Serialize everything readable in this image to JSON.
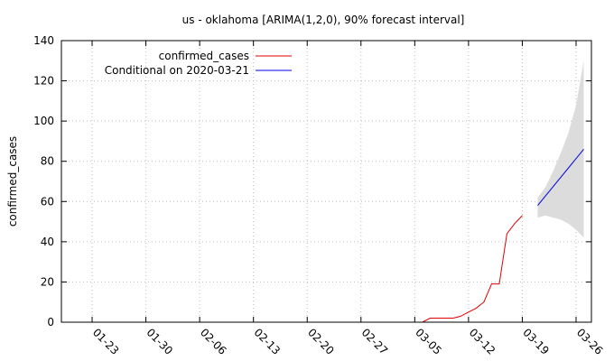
{
  "chart_data": {
    "type": "line",
    "title": "us - oklahoma [ARIMA(1,2,0), 90% forecast interval]",
    "xlabel": "",
    "ylabel": "confirmed_cases",
    "ylim": [
      0,
      140
    ],
    "yticks": [
      0,
      20,
      40,
      60,
      80,
      100,
      120,
      140
    ],
    "xlim": [
      "2020-01-19",
      "2020-03-28"
    ],
    "xticks": [
      "01-23",
      "01-30",
      "02-06",
      "02-13",
      "02-20",
      "02-27",
      "03-05",
      "03-12",
      "03-19",
      "03-26"
    ],
    "xtick_dates": [
      "2020-01-23",
      "2020-01-30",
      "2020-02-06",
      "2020-02-13",
      "2020-02-20",
      "2020-02-27",
      "2020-03-05",
      "2020-03-12",
      "2020-03-19",
      "2020-03-26"
    ],
    "grid": true,
    "legend_position": "top-left",
    "series": [
      {
        "name": "confirmed_cases",
        "color": "#e00000",
        "points": [
          [
            "2020-03-06",
            0
          ],
          [
            "2020-03-07",
            2
          ],
          [
            "2020-03-08",
            2
          ],
          [
            "2020-03-09",
            2
          ],
          [
            "2020-03-10",
            2
          ],
          [
            "2020-03-11",
            3
          ],
          [
            "2020-03-12",
            5
          ],
          [
            "2020-03-13",
            7
          ],
          [
            "2020-03-14",
            10
          ],
          [
            "2020-03-15",
            19
          ],
          [
            "2020-03-16",
            19
          ],
          [
            "2020-03-17",
            44
          ],
          [
            "2020-03-18",
            49
          ],
          [
            "2020-03-19",
            53
          ]
        ]
      },
      {
        "name": "Conditional on 2020-03-21",
        "color": "#0000e0",
        "points": [
          [
            "2020-03-21",
            58
          ],
          [
            "2020-03-27",
            86
          ]
        ]
      }
    ],
    "forecast_interval": {
      "color": "#dcdcdc",
      "points": [
        [
          "2020-03-21",
          52,
          62
        ],
        [
          "2020-03-22",
          53,
          67
        ],
        [
          "2020-03-23",
          52,
          75
        ],
        [
          "2020-03-24",
          51,
          84
        ],
        [
          "2020-03-25",
          49,
          94
        ],
        [
          "2020-03-26",
          46,
          108
        ],
        [
          "2020-03-27",
          42,
          130
        ]
      ]
    }
  }
}
